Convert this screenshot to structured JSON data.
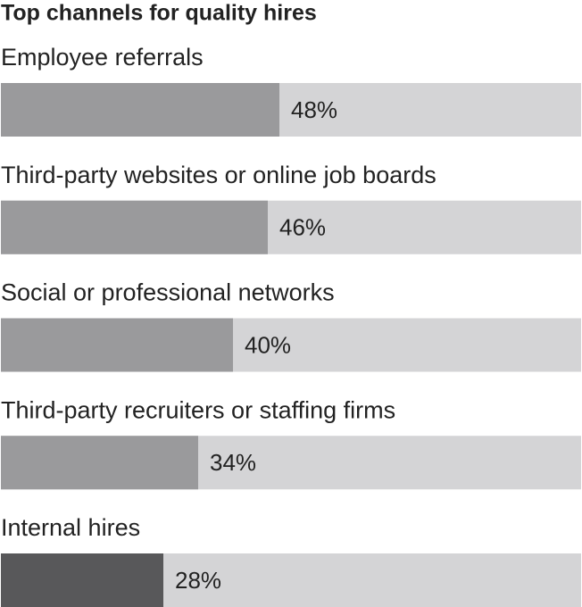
{
  "chart_data": {
    "type": "bar",
    "orientation": "horizontal",
    "title": "Top channels for quality hires",
    "categories": [
      "Employee referrals",
      "Third-party websites or online job boards",
      "Social or professional networks",
      "Third-party recruiters or staffing firms",
      "Internal hires"
    ],
    "values": [
      48,
      46,
      40,
      34,
      28
    ],
    "value_labels": [
      "48%",
      "46%",
      "40%",
      "34%",
      "28%"
    ],
    "colors": [
      "#9a9a9c",
      "#9a9a9c",
      "#9a9a9c",
      "#9a9a9c",
      "#58585a"
    ],
    "track_color": "#d4d4d6",
    "xlim": [
      0,
      100
    ]
  }
}
